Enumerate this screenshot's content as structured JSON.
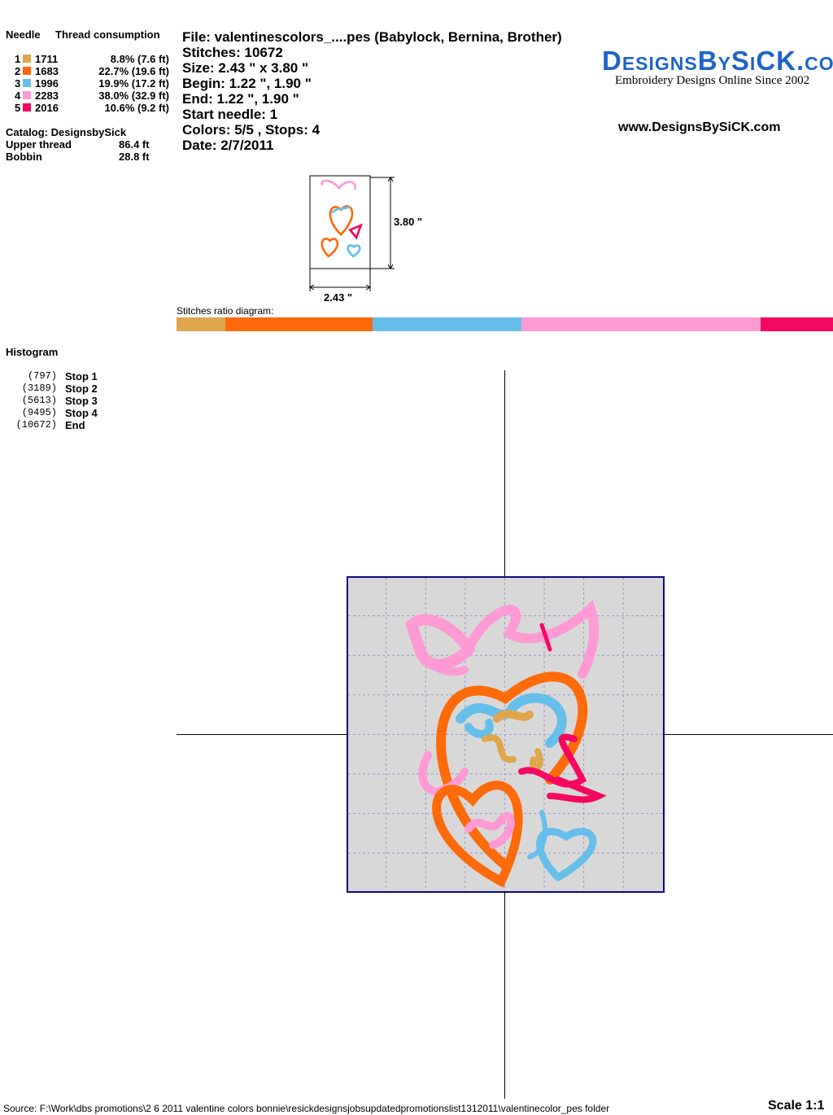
{
  "left_panel": {
    "needle_header": "Needle",
    "thread_header": "Thread consumption",
    "threads": [
      {
        "needle": "1",
        "code": "1711",
        "consumption": "8.8% (7.6 ft)",
        "color": "#E0A64B"
      },
      {
        "needle": "2",
        "code": "1683",
        "consumption": "22.7% (19.6 ft)",
        "color": "#FF6A0A"
      },
      {
        "needle": "3",
        "code": "1996",
        "consumption": "19.9% (17.2 ft)",
        "color": "#66BFEA"
      },
      {
        "needle": "4",
        "code": "2283",
        "consumption": "38.0% (32.9 ft)",
        "color": "#FF9AD5"
      },
      {
        "needle": "5",
        "code": "2016",
        "consumption": "10.6% (9.2 ft)",
        "color": "#F5085F"
      }
    ],
    "catalog": "Catalog: DesignsbySick",
    "upper_thread_label": "Upper thread",
    "upper_thread_value": "86.4 ft",
    "bobbin_label": "Bobbin",
    "bobbin_value": "28.8 ft",
    "histogram_title": "Histogram",
    "histogram": [
      {
        "count": "(797)",
        "label": "Stop 1"
      },
      {
        "count": "(3189)",
        "label": "Stop 2"
      },
      {
        "count": "(5613)",
        "label": "Stop 3"
      },
      {
        "count": "(9495)",
        "label": "Stop 4"
      },
      {
        "count": "(10672)",
        "label": "End"
      }
    ]
  },
  "info": {
    "file": "File: valentinescolors_....pes  (Babylock, Bernina, Brother)",
    "stitches": "Stitches: 10672",
    "size": "Size: 2.43 \" x 3.80 \"",
    "begin": "Begin: 1.22 \", 1.90 \"",
    "end": "End: 1.22 \", 1.90 \"",
    "start_needle": "Start needle: 1",
    "colors": "Colors: 5/5 , Stops: 4",
    "date": "Date: 2/7/2011"
  },
  "logo": {
    "text": "DesignsBySiCK.com",
    "tagline": "Embroidery Designs Online Since 2002",
    "url": "www.DesignsBySiCK.com",
    "color": "#1E64C8"
  },
  "thumbnail": {
    "height_label": "3.80 \"",
    "width_label": "2.43 \""
  },
  "ratio": {
    "label": "Stitches ratio diagram:",
    "stitch_counts": [
      797,
      2392,
      2424,
      3882,
      1177
    ]
  },
  "footer": {
    "source": "Source: F:\\Work\\dbs promotions\\2 6 2011 valentine colors bonnie\\resickdesignsjobsupdatedpromotionslist1312011\\valentinecolor_pes folder",
    "scale": "Scale 1:1"
  }
}
